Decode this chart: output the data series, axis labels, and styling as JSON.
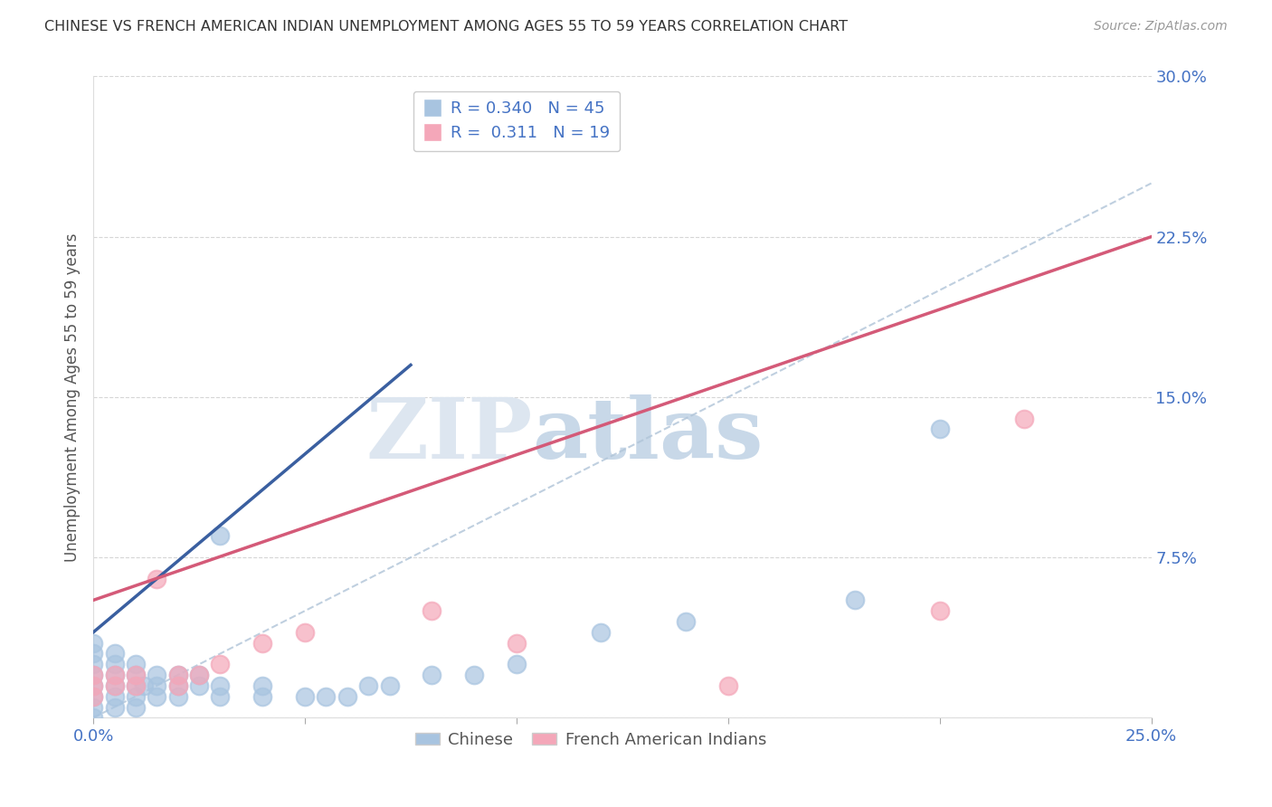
{
  "title": "CHINESE VS FRENCH AMERICAN INDIAN UNEMPLOYMENT AMONG AGES 55 TO 59 YEARS CORRELATION CHART",
  "source": "Source: ZipAtlas.com",
  "ylabel": "Unemployment Among Ages 55 to 59 years",
  "xlabel": "",
  "xlim": [
    0.0,
    0.25
  ],
  "ylim": [
    0.0,
    0.3
  ],
  "xticks": [
    0.0,
    0.05,
    0.1,
    0.15,
    0.2,
    0.25
  ],
  "xticklabels": [
    "0.0%",
    "",
    "",
    "",
    "",
    "25.0%"
  ],
  "yticks": [
    0.0,
    0.075,
    0.15,
    0.225,
    0.3
  ],
  "yticklabels": [
    "",
    "7.5%",
    "15.0%",
    "22.5%",
    "30.0%"
  ],
  "chinese_R": "0.340",
  "chinese_N": "45",
  "french_R": "0.311",
  "french_N": "19",
  "chinese_color": "#a8c4e0",
  "french_color": "#f4a7b9",
  "chinese_line_color": "#3a5fa0",
  "french_line_color": "#d45a78",
  "diagonal_color": "#b0c4d8",
  "watermark_zip": "ZIP",
  "watermark_atlas": "atlas",
  "chinese_scatter_x": [
    0.0,
    0.0,
    0.0,
    0.0,
    0.0,
    0.0,
    0.0,
    0.0,
    0.005,
    0.005,
    0.005,
    0.005,
    0.005,
    0.005,
    0.01,
    0.01,
    0.01,
    0.01,
    0.01,
    0.012,
    0.015,
    0.015,
    0.015,
    0.02,
    0.02,
    0.02,
    0.025,
    0.025,
    0.03,
    0.03,
    0.03,
    0.04,
    0.04,
    0.05,
    0.055,
    0.06,
    0.065,
    0.07,
    0.08,
    0.09,
    0.1,
    0.12,
    0.14,
    0.18,
    0.2
  ],
  "chinese_scatter_y": [
    0.0,
    0.005,
    0.01,
    0.015,
    0.02,
    0.025,
    0.03,
    0.035,
    0.005,
    0.01,
    0.015,
    0.02,
    0.025,
    0.03,
    0.005,
    0.01,
    0.015,
    0.02,
    0.025,
    0.015,
    0.01,
    0.015,
    0.02,
    0.01,
    0.015,
    0.02,
    0.015,
    0.02,
    0.01,
    0.015,
    0.085,
    0.01,
    0.015,
    0.01,
    0.01,
    0.01,
    0.015,
    0.015,
    0.02,
    0.02,
    0.025,
    0.04,
    0.045,
    0.055,
    0.135
  ],
  "french_scatter_x": [
    0.0,
    0.0,
    0.0,
    0.005,
    0.005,
    0.01,
    0.01,
    0.015,
    0.02,
    0.02,
    0.025,
    0.03,
    0.04,
    0.05,
    0.08,
    0.1,
    0.15,
    0.2,
    0.22
  ],
  "french_scatter_y": [
    0.01,
    0.015,
    0.02,
    0.015,
    0.02,
    0.015,
    0.02,
    0.065,
    0.015,
    0.02,
    0.02,
    0.025,
    0.035,
    0.04,
    0.05,
    0.035,
    0.015,
    0.05,
    0.14
  ],
  "chinese_line_x": [
    0.0,
    0.075
  ],
  "chinese_line_y": [
    0.04,
    0.165
  ],
  "french_line_x": [
    0.0,
    0.25
  ],
  "french_line_y": [
    0.055,
    0.225
  ],
  "diag_line_x": [
    0.0,
    0.25
  ],
  "diag_line_y": [
    0.0,
    0.25
  ]
}
